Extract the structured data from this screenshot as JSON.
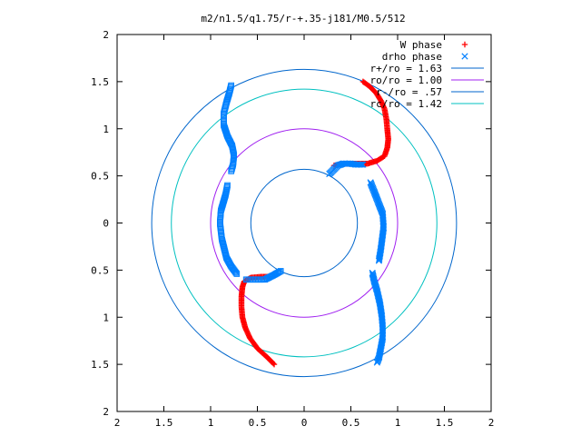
{
  "chart_data": {
    "type": "scatter",
    "title": "m2/n1.5/q1.75/r-+.35-j181/M0.5/512",
    "xlim": [
      -2,
      2
    ],
    "ylim": [
      -2,
      2
    ],
    "x_tick_values": [
      -2,
      -1.5,
      -1,
      -0.5,
      0,
      0.5,
      1,
      1.5,
      2
    ],
    "x_tick_labels": [
      "2",
      "1.5",
      "1",
      "0.5",
      "0",
      "0.5",
      "1",
      "1.5",
      "2"
    ],
    "y_tick_values": [
      2,
      1.5,
      1,
      0.5,
      0,
      -0.5,
      -1,
      -1.5,
      -2
    ],
    "y_tick_labels": [
      "2",
      "1.5",
      "1",
      "0.5",
      "0",
      "0.5",
      "1",
      "1.5",
      "2"
    ],
    "grid": false,
    "legend_position": "top-right",
    "series": [
      {
        "name": "W phase",
        "marker": "plus",
        "color": "#ff0000",
        "arms": [
          [
            [
              0.63,
              1.5
            ],
            [
              0.7,
              1.45
            ],
            [
              0.77,
              1.38
            ],
            [
              0.82,
              1.3
            ],
            [
              0.86,
              1.21
            ],
            [
              0.88,
              1.1
            ],
            [
              0.89,
              0.99
            ],
            [
              0.9,
              0.89
            ],
            [
              0.89,
              0.8
            ],
            [
              0.86,
              0.71
            ],
            [
              0.78,
              0.66
            ],
            [
              0.68,
              0.63
            ],
            [
              0.55,
              0.63
            ],
            [
              0.43,
              0.63
            ],
            [
              0.32,
              0.61
            ]
          ],
          [
            [
              -0.32,
              -1.5
            ],
            [
              -0.4,
              -1.42
            ],
            [
              -0.5,
              -1.33
            ],
            [
              -0.58,
              -1.22
            ],
            [
              -0.63,
              -1.11
            ],
            [
              -0.66,
              -1.0
            ],
            [
              -0.67,
              -0.89
            ],
            [
              -0.67,
              -0.78
            ],
            [
              -0.66,
              -0.68
            ],
            [
              -0.64,
              -0.62
            ],
            [
              -0.57,
              -0.58
            ],
            [
              -0.46,
              -0.57
            ],
            [
              -0.38,
              -0.57
            ]
          ]
        ]
      },
      {
        "name": "drho phase",
        "marker": "cross",
        "color": "#0080ff",
        "arms": [
          [
            [
              0.27,
              0.52
            ],
            [
              0.31,
              0.56
            ],
            [
              0.36,
              0.61
            ],
            [
              0.42,
              0.63
            ],
            [
              0.49,
              0.63
            ],
            [
              0.56,
              0.62
            ],
            [
              0.63,
              0.62
            ]
          ],
          [
            [
              0.71,
              0.43
            ],
            [
              0.75,
              0.33
            ],
            [
              0.84,
              0.1
            ],
            [
              0.85,
              -0.05
            ],
            [
              0.82,
              -0.28
            ],
            [
              0.8,
              -0.4
            ]
          ],
          [
            [
              0.73,
              -0.53
            ],
            [
              0.75,
              -0.62
            ],
            [
              0.78,
              -0.72
            ],
            [
              0.81,
              -0.85
            ],
            [
              0.83,
              -0.98
            ],
            [
              0.84,
              -1.1
            ],
            [
              0.84,
              -1.22
            ],
            [
              0.82,
              -1.33
            ],
            [
              0.8,
              -1.43
            ],
            [
              0.78,
              -1.48
            ]
          ]
        ]
      },
      {
        "name": "",
        "marker": "square",
        "color": "#0080ff",
        "arms": [
          [
            [
              -0.78,
              1.46
            ],
            [
              -0.8,
              1.38
            ],
            [
              -0.83,
              1.28
            ],
            [
              -0.86,
              1.16
            ],
            [
              -0.86,
              1.04
            ],
            [
              -0.82,
              0.92
            ],
            [
              -0.77,
              0.82
            ],
            [
              -0.75,
              0.72
            ],
            [
              -0.76,
              0.62
            ],
            [
              -0.78,
              0.55
            ]
          ],
          [
            [
              -0.82,
              0.4
            ],
            [
              -0.84,
              0.3
            ],
            [
              -0.89,
              0.13
            ],
            [
              -0.9,
              0.0
            ],
            [
              -0.88,
              -0.17
            ],
            [
              -0.83,
              -0.37
            ],
            [
              -0.78,
              -0.46
            ],
            [
              -0.72,
              -0.54
            ]
          ],
          [
            [
              -0.62,
              -0.6
            ],
            [
              -0.52,
              -0.6
            ],
            [
              -0.42,
              -0.6
            ],
            [
              -0.32,
              -0.55
            ],
            [
              -0.25,
              -0.51
            ]
          ]
        ]
      },
      {
        "name": "r+/ro = 1.63",
        "marker": "circle",
        "color": "#0066cc",
        "radius": 1.63
      },
      {
        "name": "ro/ro = 1.00",
        "marker": "circle",
        "color": "#a020f0",
        "radius": 1.0
      },
      {
        "name": "r-/ro = .57",
        "marker": "circle",
        "color": "#0066cc",
        "radius": 0.57
      },
      {
        "name": "rc/ro = 1.42",
        "marker": "circle",
        "color": "#00c0c0",
        "radius": 1.42
      }
    ]
  }
}
